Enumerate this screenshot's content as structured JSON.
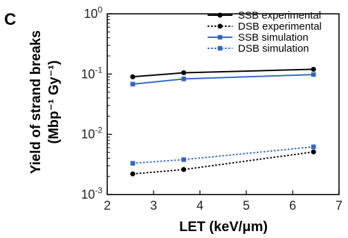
{
  "panel_label": "C",
  "chart_data": {
    "type": "line",
    "xlabel": "LET (keV/μm)",
    "ylabel_line1": "Yield of strand breaks",
    "ylabel_line2": "(Mbp⁻¹ Gy⁻¹)",
    "xlim": [
      2,
      7
    ],
    "ylim": [
      0.001,
      1
    ],
    "yscale": "log",
    "xticks": [
      2,
      3,
      4,
      5,
      6,
      7
    ],
    "xtick_labels": [
      "2",
      "3",
      "4",
      "5",
      "6",
      "7"
    ],
    "yticks": [
      0.001,
      0.01,
      0.1,
      1
    ],
    "ytick_labels": [
      {
        "base": "10",
        "exp": "-3"
      },
      {
        "base": "10",
        "exp": "-2"
      },
      {
        "base": "10",
        "exp": "-1"
      },
      {
        "base": "10",
        "exp": "0"
      }
    ],
    "grid": false,
    "legend_position": "top-right",
    "series": [
      {
        "name": "SSB experimental",
        "color": "#000000",
        "dashed": false,
        "marker": "circle",
        "x": [
          2.55,
          3.65,
          6.45
        ],
        "y": [
          0.09,
          0.105,
          0.12
        ]
      },
      {
        "name": "DSB experimental",
        "color": "#000000",
        "dashed": true,
        "marker": "circle",
        "x": [
          2.55,
          3.65,
          6.45
        ],
        "y": [
          0.0022,
          0.0026,
          0.0051
        ]
      },
      {
        "name": "SSB simulation",
        "color": "#2e67c8",
        "dashed": false,
        "marker": "square",
        "x": [
          2.55,
          3.65,
          6.45
        ],
        "y": [
          0.068,
          0.083,
          0.098
        ]
      },
      {
        "name": "DSB simulation",
        "color": "#2e67c8",
        "dashed": true,
        "marker": "square",
        "x": [
          2.55,
          3.65,
          6.45
        ],
        "y": [
          0.0033,
          0.0038,
          0.0062
        ]
      }
    ]
  }
}
